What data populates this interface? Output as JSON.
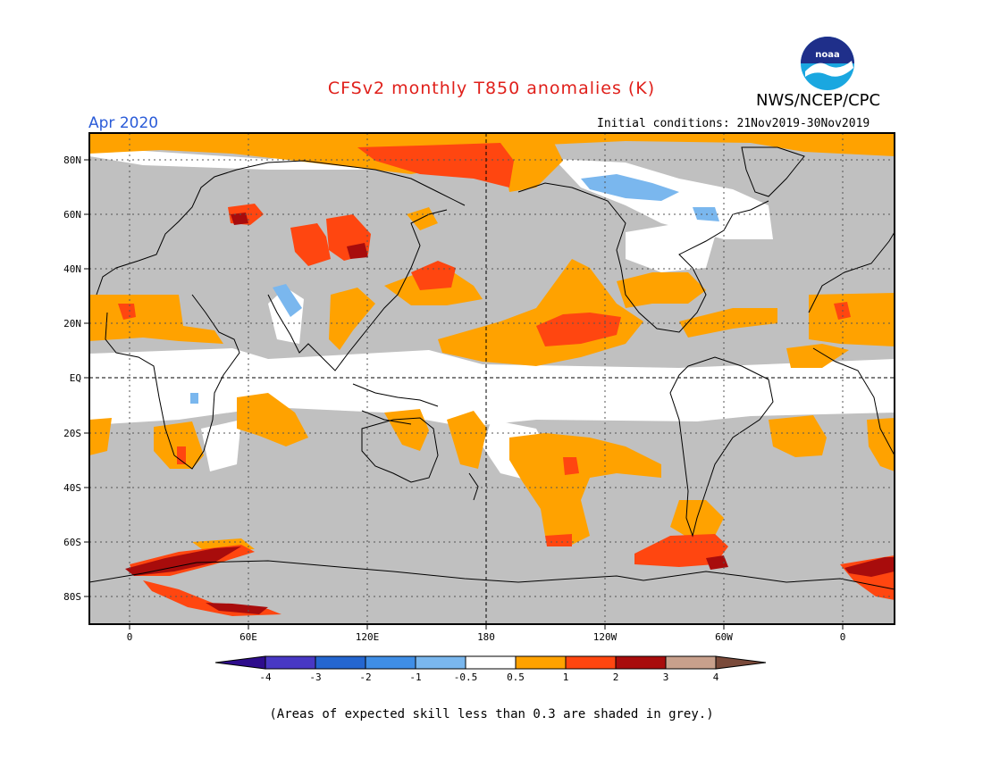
{
  "header": {
    "title": "CFSv2 monthly T850 anomalies (K)",
    "agency": "NWS/NCEP/CPC",
    "period": "Apr 2020",
    "initial_conditions": "Initial conditions: 21Nov2019-30Nov2019",
    "logo_text": "noaa"
  },
  "colors": {
    "title": "#e0201b",
    "period": "#2a5bd8",
    "grey_skill": "#c0c0c0",
    "frame": "#000000"
  },
  "map": {
    "lat_labels": [
      "80N",
      "60N",
      "40N",
      "20N",
      "EQ",
      "20S",
      "40S",
      "60S",
      "80S"
    ],
    "lon_labels": [
      "0",
      "60E",
      "120E",
      "180",
      "120W",
      "60W",
      "0"
    ]
  },
  "colorbar": {
    "tick_labels": [
      "-4",
      "-3",
      "-2",
      "-1",
      "-0.5",
      "0.5",
      "1",
      "2",
      "3",
      "4"
    ],
    "bins": [
      {
        "range": "< -4",
        "color": "#2e0c8c"
      },
      {
        "range": "-4 to -3",
        "color": "#4838c4"
      },
      {
        "range": "-3 to -2",
        "color": "#2466d0"
      },
      {
        "range": "-2 to -1",
        "color": "#3f8ee6"
      },
      {
        "range": "-1 to -0.5",
        "color": "#7ab7ee"
      },
      {
        "range": "-0.5 to 0.5",
        "color": "#ffffff"
      },
      {
        "range": "0.5 to 1",
        "color": "#ffa200"
      },
      {
        "range": "1 to 2",
        "color": "#ff4610"
      },
      {
        "range": "2 to 3",
        "color": "#a80c0c"
      },
      {
        "range": "3 to 4",
        "color": "#c8a08c"
      },
      {
        "range": "> 4",
        "color": "#7a4a3a"
      }
    ]
  },
  "footer": {
    "note": "(Areas of expected skill less than 0.3 are shaded in grey.)"
  }
}
